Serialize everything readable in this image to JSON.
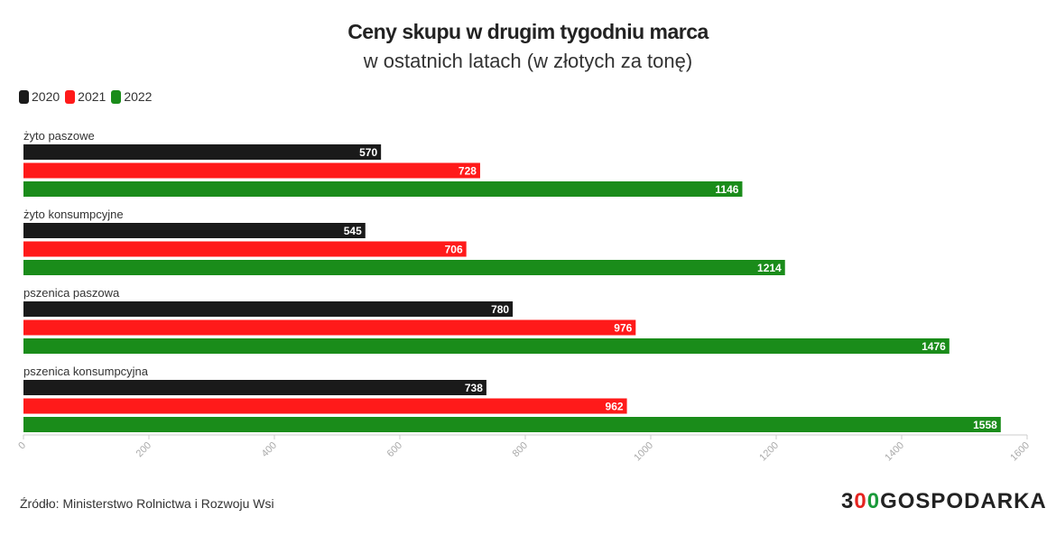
{
  "title": "Ceny skupu w drugim tygodniu marca",
  "subtitle": "w ostatnich latach (w złotych za tonę)",
  "source": "Źródło: Ministerstwo Rolnictwa i Rozwoju Wsi",
  "logo": "300GOSPODARKA",
  "chart_data": {
    "type": "bar",
    "orientation": "horizontal",
    "categories": [
      "żyto paszowe",
      "żyto konsumpcyjne",
      "pszenica paszowa",
      "pszenica konsumpcyjna"
    ],
    "series": [
      {
        "name": "2020",
        "color": "#1a1a1a",
        "values": [
          570,
          545,
          780,
          738
        ]
      },
      {
        "name": "2021",
        "color": "#ff1a1a",
        "values": [
          728,
          706,
          976,
          962
        ]
      },
      {
        "name": "2022",
        "color": "#1a8c1a",
        "values": [
          1146,
          1214,
          1476,
          1558
        ]
      }
    ],
    "xlim": [
      0,
      1600
    ],
    "xticks": [
      0,
      200,
      400,
      600,
      800,
      1000,
      1200,
      1400,
      1600
    ],
    "legend": "top-left",
    "grid": false
  }
}
